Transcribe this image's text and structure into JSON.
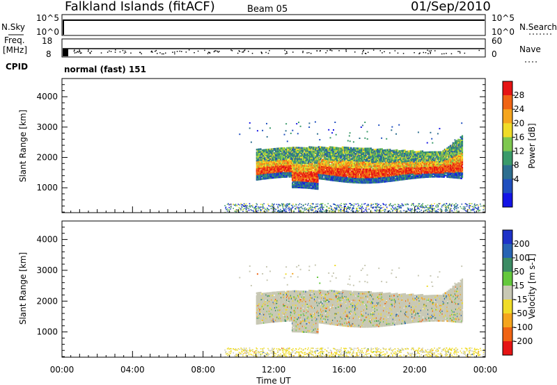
{
  "header": {
    "station": "Falkland Islands (fitACF)",
    "beam": "Beam 05",
    "date": "01/Sep/2010"
  },
  "nsky_panel": {
    "left_label": "N.Sky",
    "right_label": "N.Search",
    "ticks": [
      "10^5",
      "10^0"
    ],
    "right_ticks": [
      "10^5",
      "10^0"
    ]
  },
  "freq_panel": {
    "left_label_1": "Freq.",
    "left_label_2": "[MHz]",
    "left_ticks": [
      "18",
      "8"
    ],
    "right_label": "Nave",
    "right_ticks": [
      "60",
      "0"
    ],
    "cpid_label": "CPID"
  },
  "mode_text": "normal (fast) 151",
  "x_axis": {
    "label": "Time UT",
    "ticks": [
      "00:00",
      "04:00",
      "08:00",
      "12:00",
      "16:00",
      "20:00",
      "00:00"
    ]
  },
  "chart_data": [
    {
      "type": "heatmap",
      "title": "",
      "quantity": "Power",
      "xlabel": "Time UT",
      "ylabel": "Slant Range [km]",
      "xlim_hours": [
        0,
        24
      ],
      "ylim_km": [
        180,
        4600
      ],
      "y_ticks": [
        "4000",
        "3000",
        "2000",
        "1000"
      ],
      "colorbar": {
        "label": "Power [dB]",
        "ticks": [
          "28",
          "24",
          "20",
          "16",
          "12",
          "8",
          "4"
        ],
        "range": [
          0,
          32
        ],
        "colors": [
          "#1414e6",
          "#1f4fbf",
          "#2d6e8f",
          "#3a9a6a",
          "#7ec850",
          "#f0dc28",
          "#f5a51e",
          "#f06414",
          "#e61414"
        ]
      },
      "main_echo": {
        "start_hour": 11.0,
        "end_hour": 22.7,
        "bottom_km": 1200,
        "top_km": 2400,
        "peak_power_db": 30
      },
      "ground_scatter_band": {
        "start_hour": 9.2,
        "end_hour": 24,
        "range_km": [
          200,
          500
        ]
      }
    },
    {
      "type": "heatmap",
      "title": "",
      "quantity": "Velocity",
      "xlabel": "Time UT",
      "ylabel": "Slant Range [km]",
      "xlim_hours": [
        0,
        24
      ],
      "ylim_km": [
        180,
        4600
      ],
      "y_ticks": [
        "4000",
        "3000",
        "2000",
        "1000"
      ],
      "colorbar": {
        "label": "Velocity [m s-1]",
        "ticks": [
          "200",
          "100",
          "50",
          "15",
          "-15",
          "-50",
          "-100",
          "-200"
        ],
        "colors": [
          "#1e32c8",
          "#2864b4",
          "#3c8c64",
          "#64c83c",
          "#c8c8b4",
          "#f0dc28",
          "#f5a51e",
          "#f06414",
          "#e61414"
        ]
      },
      "dominant_velocity_range": [
        -15,
        15
      ]
    }
  ]
}
